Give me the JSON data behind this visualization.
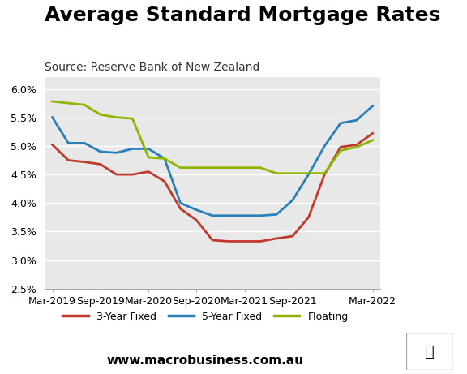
{
  "title": "Average Standard Mortgage Rates",
  "source": "Source: Reserve Bank of New Zealand",
  "website": "www.macrobusiness.com.au",
  "fig_bg_color": "#ffffff",
  "plot_bg_color": "#e8e8e8",
  "ylim": [
    2.5,
    6.2
  ],
  "yticks": [
    2.5,
    3.0,
    3.5,
    4.0,
    4.5,
    5.0,
    5.5,
    6.0
  ],
  "x_labels": [
    "Mar-2019",
    "Sep-2019",
    "Mar-2020",
    "Sep-2020",
    "Mar-2021",
    "Sep-2021",
    "Mar-2022"
  ],
  "x_tick_positions": [
    0,
    3,
    6,
    9,
    12,
    15,
    20
  ],
  "series": {
    "3yr_fixed": {
      "color": "#c0392b",
      "label": "3-Year Fixed",
      "values": [
        5.02,
        4.75,
        4.72,
        4.68,
        4.5,
        4.5,
        4.55,
        4.38,
        3.9,
        3.7,
        3.35,
        3.33,
        3.33,
        3.33,
        3.38,
        3.42,
        3.75,
        4.5,
        4.98,
        5.02,
        5.22
      ]
    },
    "5yr_fixed": {
      "color": "#2980b9",
      "label": "5-Year Fixed",
      "values": [
        5.5,
        5.05,
        5.05,
        4.9,
        4.88,
        4.95,
        4.95,
        4.78,
        4.0,
        3.88,
        3.78,
        3.78,
        3.78,
        3.78,
        3.8,
        4.05,
        4.5,
        5.0,
        5.4,
        5.45,
        5.7
      ]
    },
    "floating": {
      "color": "#8db600",
      "label": "Floating",
      "values": [
        5.78,
        5.75,
        5.72,
        5.55,
        5.5,
        5.48,
        4.8,
        4.78,
        4.62,
        4.62,
        4.62,
        4.62,
        4.62,
        4.62,
        4.52,
        4.52,
        4.52,
        4.52,
        4.92,
        4.98,
        5.1
      ]
    }
  },
  "n_points": 21,
  "macro_box_color": "#cc0000",
  "title_fontsize": 18,
  "source_fontsize": 10,
  "tick_fontsize": 9,
  "legend_fontsize": 9,
  "website_fontsize": 11
}
